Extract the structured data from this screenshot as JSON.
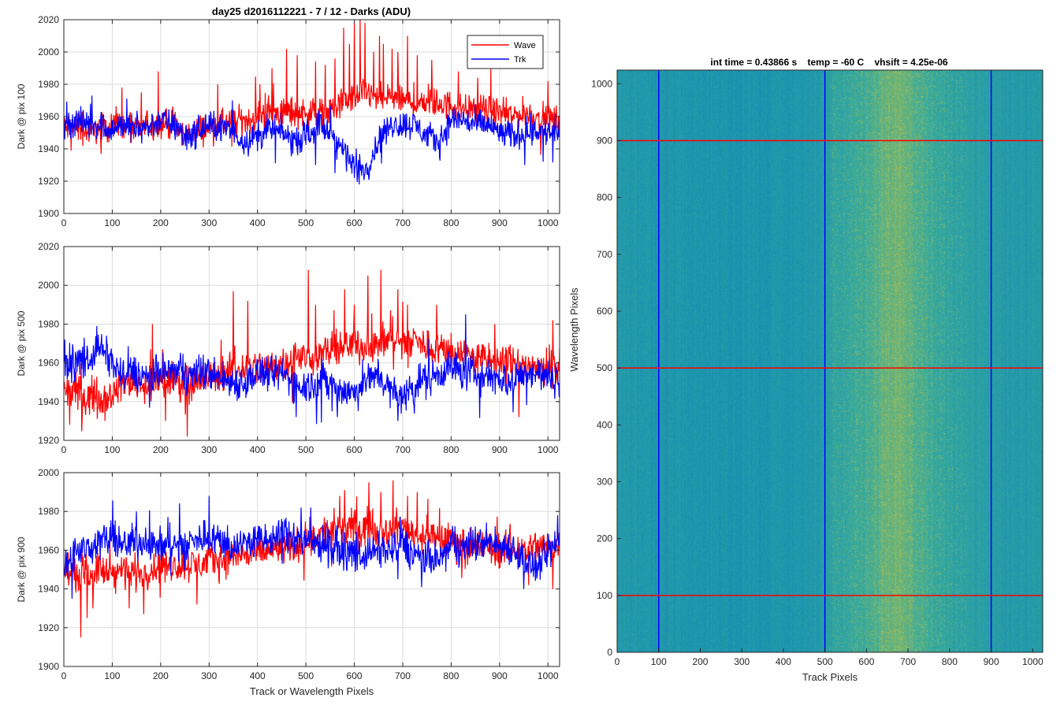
{
  "figure_title": "day25 d2016112221 - 7 / 12 - Darks (ADU)",
  "colors": {
    "wave": "#ff0000",
    "trk": "#0000ff",
    "grid": "#dcdcdc",
    "axis": "#262626"
  },
  "chart_data": [
    {
      "type": "line",
      "title": "day25 d2016112221 - 7 / 12 - Darks (ADU)",
      "ylabel": "Dark @ pix 100",
      "xlabel": "",
      "xlim": [
        0,
        1024
      ],
      "ylim": [
        1900,
        2020
      ],
      "xticks": [
        0,
        100,
        200,
        300,
        400,
        500,
        600,
        700,
        800,
        900,
        1000
      ],
      "yticks": [
        1900,
        1920,
        1940,
        1960,
        1980,
        2000,
        2020
      ],
      "grid": true,
      "legend": "top-right",
      "series": [
        {
          "name": "Wave",
          "color": "#ff0000",
          "x": [
            0,
            25,
            50,
            75,
            100,
            125,
            150,
            175,
            200,
            225,
            250,
            275,
            300,
            325,
            350,
            375,
            400,
            425,
            450,
            475,
            500,
            525,
            550,
            575,
            600,
            625,
            650,
            675,
            700,
            725,
            750,
            775,
            800,
            825,
            850,
            875,
            900,
            925,
            950,
            975,
            1000,
            1024
          ],
          "y": [
            1952,
            1955,
            1950,
            1953,
            1955,
            1953,
            1952,
            1954,
            1956,
            1955,
            1948,
            1952,
            1953,
            1955,
            1956,
            1958,
            1960,
            1962,
            1963,
            1962,
            1963,
            1962,
            1963,
            1968,
            1972,
            1975,
            1970,
            1972,
            1970,
            1968,
            1970,
            1968,
            1967,
            1966,
            1965,
            1964,
            1962,
            1960,
            1962,
            1960,
            1958,
            1958
          ],
          "spikes": [
            [
              120,
              1978
            ],
            [
              160,
              1975
            ],
            [
              195,
              1988
            ],
            [
              318,
              1980
            ],
            [
              405,
              1980
            ],
            [
              430,
              1990
            ],
            [
              460,
              2002
            ],
            [
              482,
              1998
            ],
            [
              520,
              1994
            ],
            [
              540,
              1992
            ],
            [
              560,
              1996
            ],
            [
              578,
              2015
            ],
            [
              590,
              2005
            ],
            [
              600,
              2018
            ],
            [
              612,
              2020
            ],
            [
              622,
              2018
            ],
            [
              640,
              2000
            ],
            [
              652,
              2010
            ],
            [
              660,
              2005
            ],
            [
              678,
              2002
            ],
            [
              690,
              2000
            ],
            [
              710,
              2010
            ],
            [
              730,
              1998
            ],
            [
              760,
              1995
            ],
            [
              815,
              1988
            ],
            [
              855,
              1984
            ],
            [
              882,
              1990
            ],
            [
              1000,
              1982
            ]
          ]
        },
        {
          "name": "Trk",
          "color": "#0000ff",
          "x": [
            0,
            25,
            50,
            75,
            100,
            125,
            150,
            175,
            200,
            225,
            250,
            275,
            300,
            325,
            350,
            375,
            400,
            425,
            450,
            475,
            500,
            525,
            550,
            575,
            600,
            625,
            650,
            675,
            700,
            725,
            750,
            775,
            800,
            825,
            850,
            875,
            900,
            925,
            950,
            975,
            1000,
            1024
          ],
          "y": [
            1952,
            1958,
            1955,
            1955,
            1952,
            1955,
            1952,
            1954,
            1958,
            1955,
            1948,
            1950,
            1955,
            1953,
            1950,
            1945,
            1948,
            1952,
            1950,
            1945,
            1948,
            1955,
            1950,
            1940,
            1930,
            1928,
            1945,
            1955,
            1955,
            1955,
            1948,
            1944,
            1958,
            1958,
            1955,
            1955,
            1950,
            1948,
            1950,
            1952,
            1950,
            1950
          ],
          "spikes": [
            [
              610,
              1918
            ],
            [
              600,
              1922
            ],
            [
              560,
              1925
            ],
            [
              520,
              1930
            ],
            [
              990,
              1932
            ],
            [
              55,
              1968
            ],
            [
              348,
              1970
            ]
          ]
        }
      ]
    },
    {
      "type": "line",
      "title": "",
      "ylabel": "Dark @ pix 500",
      "xlabel": "",
      "xlim": [
        0,
        1024
      ],
      "ylim": [
        1920,
        2020
      ],
      "xticks": [
        0,
        100,
        200,
        300,
        400,
        500,
        600,
        700,
        800,
        900,
        1000
      ],
      "yticks": [
        1920,
        1940,
        1960,
        1980,
        2000,
        2020
      ],
      "grid": true,
      "series": [
        {
          "name": "Wave",
          "color": "#ff0000",
          "x": [
            0,
            25,
            50,
            75,
            100,
            125,
            150,
            175,
            200,
            225,
            250,
            275,
            300,
            325,
            350,
            375,
            400,
            425,
            450,
            475,
            500,
            525,
            550,
            575,
            600,
            625,
            650,
            675,
            700,
            725,
            750,
            775,
            800,
            825,
            850,
            875,
            900,
            925,
            950,
            975,
            1000,
            1024
          ],
          "y": [
            1945,
            1945,
            1943,
            1942,
            1944,
            1950,
            1950,
            1948,
            1950,
            1952,
            1950,
            1950,
            1952,
            1955,
            1955,
            1958,
            1958,
            1958,
            1960,
            1962,
            1963,
            1964,
            1966,
            1967,
            1970,
            1968,
            1970,
            1972,
            1970,
            1972,
            1968,
            1968,
            1966,
            1965,
            1962,
            1962,
            1960,
            1960,
            1958,
            1958,
            1958,
            1958
          ],
          "spikes": [
            [
              12,
              1928
            ],
            [
              85,
              1930
            ],
            [
              183,
              1980
            ],
            [
              210,
              1930
            ],
            [
              255,
              1922
            ],
            [
              350,
              1997
            ],
            [
              380,
              1992
            ],
            [
              505,
              2008
            ],
            [
              520,
              1990
            ],
            [
              580,
              1998
            ],
            [
              600,
              1990
            ],
            [
              628,
              2005
            ],
            [
              655,
              2008
            ],
            [
              690,
              1998
            ],
            [
              710,
              1990
            ],
            [
              770,
              1990
            ],
            [
              890,
              1980
            ],
            [
              940,
              1932
            ],
            [
              1010,
              1982
            ]
          ]
        },
        {
          "name": "Trk",
          "color": "#0000ff",
          "x": [
            0,
            25,
            50,
            75,
            100,
            125,
            150,
            175,
            200,
            225,
            250,
            275,
            300,
            325,
            350,
            375,
            400,
            425,
            450,
            475,
            500,
            525,
            550,
            575,
            600,
            625,
            650,
            675,
            700,
            725,
            750,
            775,
            800,
            825,
            850,
            875,
            900,
            925,
            950,
            975,
            1000,
            1024
          ],
          "y": [
            1960,
            1960,
            1962,
            1968,
            1960,
            1952,
            1955,
            1952,
            1955,
            1956,
            1954,
            1955,
            1955,
            1952,
            1950,
            1950,
            1955,
            1953,
            1955,
            1950,
            1948,
            1950,
            1950,
            1945,
            1945,
            1950,
            1955,
            1945,
            1942,
            1950,
            1952,
            1955,
            1958,
            1955,
            1955,
            1952,
            1952,
            1950,
            1955,
            1955,
            1952,
            1952
          ],
          "spikes": [
            [
              68,
              1979
            ],
            [
              565,
              1932
            ],
            [
              480,
              1932
            ],
            [
              690,
              1930
            ],
            [
              830,
              1985
            ]
          ]
        }
      ]
    },
    {
      "type": "line",
      "title": "",
      "ylabel": "Dark @ pix 900",
      "xlabel": "Track or Wavelength Pixels",
      "xlim": [
        0,
        1024
      ],
      "ylim": [
        1900,
        2000
      ],
      "xticks": [
        0,
        100,
        200,
        300,
        400,
        500,
        600,
        700,
        800,
        900,
        1000
      ],
      "yticks": [
        1900,
        1920,
        1940,
        1960,
        1980,
        2000
      ],
      "grid": true,
      "series": [
        {
          "name": "Wave",
          "color": "#ff0000",
          "x": [
            0,
            25,
            50,
            75,
            100,
            125,
            150,
            175,
            200,
            225,
            250,
            275,
            300,
            325,
            350,
            375,
            400,
            425,
            450,
            475,
            500,
            525,
            550,
            575,
            600,
            625,
            650,
            675,
            700,
            725,
            750,
            775,
            800,
            825,
            850,
            875,
            900,
            925,
            950,
            975,
            1000,
            1024
          ],
          "y": [
            1950,
            1948,
            1948,
            1950,
            1948,
            1950,
            1948,
            1950,
            1952,
            1952,
            1953,
            1952,
            1955,
            1955,
            1957,
            1958,
            1958,
            1960,
            1960,
            1962,
            1965,
            1968,
            1970,
            1970,
            1972,
            1972,
            1970,
            1970,
            1972,
            1968,
            1968,
            1965,
            1965,
            1962,
            1962,
            1962,
            1960,
            1960,
            1960,
            1962,
            1962,
            1962
          ],
          "spikes": [
            [
              35,
              1915
            ],
            [
              48,
              1925
            ],
            [
              60,
              1930
            ],
            [
              135,
              1930
            ],
            [
              165,
              1927
            ],
            [
              275,
              1932
            ],
            [
              570,
              1988
            ],
            [
              580,
              1991
            ],
            [
              630,
              1995
            ],
            [
              655,
              1990
            ],
            [
              680,
              1996
            ],
            [
              710,
              1988
            ],
            [
              730,
              1990
            ],
            [
              960,
              1942
            ],
            [
              1010,
              1940
            ]
          ]
        },
        {
          "name": "Trk",
          "color": "#0000ff",
          "x": [
            0,
            25,
            50,
            75,
            100,
            125,
            150,
            175,
            200,
            225,
            250,
            275,
            300,
            325,
            350,
            375,
            400,
            425,
            450,
            475,
            500,
            525,
            550,
            575,
            600,
            625,
            650,
            675,
            700,
            725,
            750,
            775,
            800,
            825,
            850,
            875,
            900,
            925,
            950,
            975,
            1000,
            1024
          ],
          "y": [
            1955,
            1958,
            1962,
            1965,
            1965,
            1962,
            1965,
            1964,
            1962,
            1962,
            1963,
            1965,
            1968,
            1965,
            1962,
            1964,
            1965,
            1965,
            1968,
            1966,
            1965,
            1964,
            1962,
            1960,
            1958,
            1958,
            1960,
            1960,
            1962,
            1958,
            1955,
            1955,
            1962,
            1962,
            1963,
            1965,
            1962,
            1962,
            1955,
            1950,
            1958,
            1965
          ],
          "spikes": [
            [
              150,
              1980
            ],
            [
              300,
              1988
            ],
            [
              490,
              1982
            ],
            [
              510,
              1982
            ],
            [
              690,
              1945
            ],
            [
              950,
              1940
            ],
            [
              1020,
              1978
            ]
          ]
        }
      ]
    },
    {
      "type": "heatmap",
      "title": "int time = 0.43866 s    temp = -60 C    vhsift = 4.25e-06",
      "xlabel": "Track Pixels",
      "ylabel": "Wavelength Pixels",
      "xlim": [
        0,
        1024
      ],
      "ylim": [
        0,
        1024
      ],
      "xticks": [
        0,
        100,
        200,
        300,
        400,
        500,
        600,
        700,
        800,
        900,
        1000
      ],
      "yticks": [
        0,
        100,
        200,
        300,
        400,
        500,
        600,
        700,
        800,
        900,
        1000
      ],
      "colormap": [
        "#1f6fb0",
        "#1a93b0",
        "#3bab9b",
        "#a6be53",
        "#e0c84a"
      ],
      "column_intensity": {
        "x": [
          0,
          100,
          200,
          300,
          400,
          480,
          520,
          560,
          600,
          640,
          680,
          720,
          760,
          800,
          840,
          880,
          900,
          950,
          1024
        ],
        "level": [
          0.32,
          0.3,
          0.28,
          0.27,
          0.29,
          0.32,
          0.42,
          0.45,
          0.5,
          0.6,
          0.62,
          0.55,
          0.48,
          0.42,
          0.4,
          0.38,
          0.36,
          0.33,
          0.33
        ]
      },
      "vertical_markers": [
        100,
        500,
        900
      ],
      "horizontal_markers": [
        100,
        500,
        900
      ],
      "vertical_marker_color": "#0000ff",
      "horizontal_marker_color": "#ff0000"
    }
  ]
}
